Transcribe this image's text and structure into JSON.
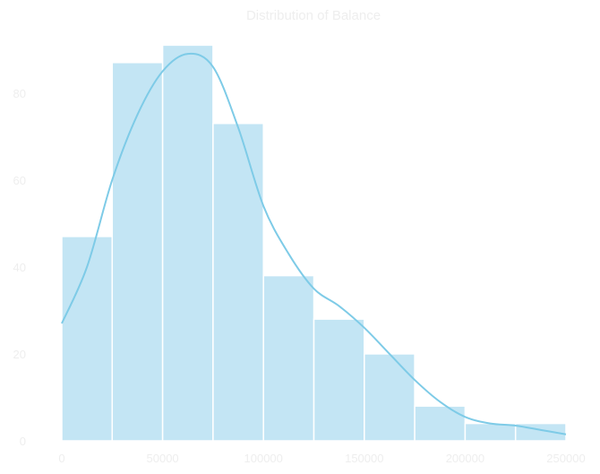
{
  "chart_data": {
    "type": "bar",
    "title": "Distribution of Balance",
    "xlabel": "",
    "ylabel": "",
    "bins": [
      {
        "x0": 0,
        "x1": 25000,
        "count": 47
      },
      {
        "x0": 25000,
        "x1": 50000,
        "count": 87
      },
      {
        "x0": 50000,
        "x1": 75000,
        "count": 91
      },
      {
        "x0": 75000,
        "x1": 100000,
        "count": 73
      },
      {
        "x0": 100000,
        "x1": 125000,
        "count": 38
      },
      {
        "x0": 125000,
        "x1": 150000,
        "count": 28
      },
      {
        "x0": 150000,
        "x1": 175000,
        "count": 20
      },
      {
        "x0": 175000,
        "x1": 200000,
        "count": 8
      },
      {
        "x0": 200000,
        "x1": 225000,
        "count": 4
      },
      {
        "x0": 225000,
        "x1": 250000,
        "count": 4
      }
    ],
    "kde": {
      "x": [
        0,
        12500,
        25000,
        37500,
        50000,
        62500,
        75000,
        87500,
        100000,
        112500,
        125000,
        137500,
        150000,
        162500,
        175000,
        187500,
        200000,
        212500,
        225000,
        237500,
        250000
      ],
      "y": [
        27,
        40,
        60,
        75,
        85,
        89,
        86,
        72,
        54,
        43,
        35,
        31,
        26,
        20,
        14,
        9,
        5.5,
        4,
        3.5,
        2.5,
        1.5
      ]
    },
    "xticks": [
      0,
      50000,
      100000,
      150000,
      200000,
      250000
    ],
    "yticks": [
      0,
      20,
      40,
      60,
      80
    ],
    "xlim": [
      0,
      250000
    ],
    "ylim": [
      0,
      95.2
    ],
    "grid": false,
    "colors": {
      "bar_fill": "#c3e5f4",
      "bar_edge": "#ffffff",
      "kde_line": "#7ecbe7",
      "text": "#eeeeee"
    }
  }
}
